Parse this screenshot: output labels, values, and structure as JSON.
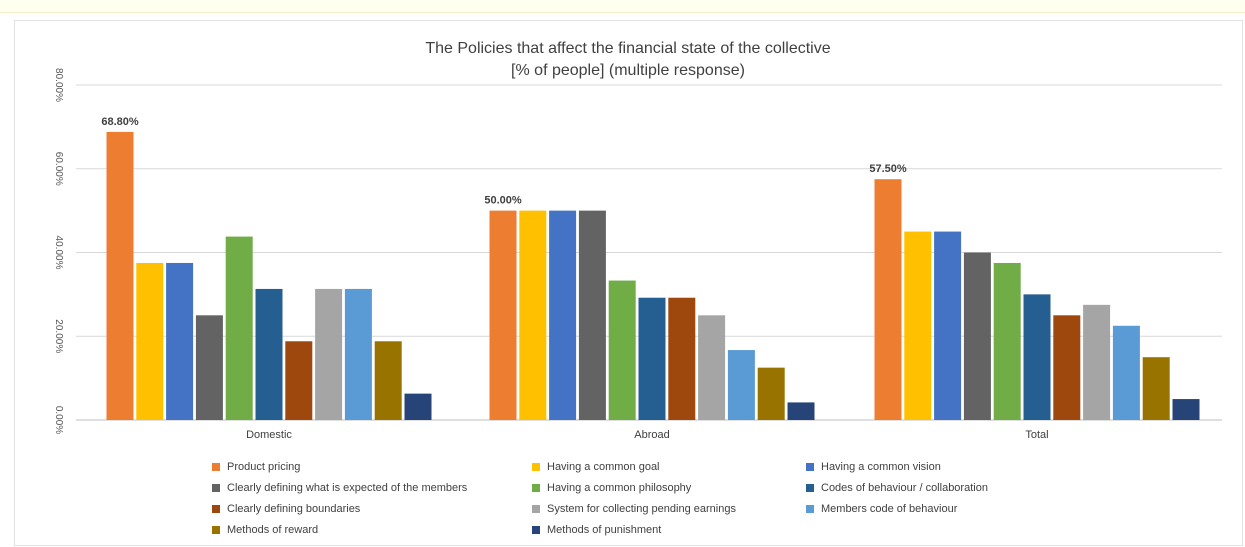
{
  "chart_data": {
    "type": "bar",
    "title": "The Policies that affect the financial state of the collective",
    "subtitle": "[% of people] (multiple response)",
    "categories": [
      "Domestic",
      "Abroad",
      "Total"
    ],
    "ylim": [
      0,
      80
    ],
    "yticks": [
      "0.00%",
      "20.00%",
      "40.00%",
      "60.00%",
      "80.00%"
    ],
    "ytick_values": [
      0,
      20,
      40,
      60,
      80
    ],
    "grid": true,
    "legend_position": "bottom",
    "series": [
      {
        "name": "Product pricing",
        "color": "#ED7D31",
        "values": [
          68.8,
          50.0,
          57.5
        ]
      },
      {
        "name": "Having a common goal",
        "color": "#FFC000",
        "values": [
          37.5,
          50.0,
          45.0
        ]
      },
      {
        "name": "Having a common vision",
        "color": "#4472C4",
        "values": [
          37.5,
          50.0,
          45.0
        ]
      },
      {
        "name": "Clearly defining what is expected of the members",
        "color": "#636363",
        "values": [
          25.0,
          50.0,
          40.0
        ]
      },
      {
        "name": "Having a common philosophy",
        "color": "#70AD47",
        "values": [
          43.8,
          33.3,
          37.5
        ]
      },
      {
        "name": "Codes of behaviour / collaboration",
        "color": "#255E91",
        "values": [
          31.3,
          29.2,
          30.0
        ]
      },
      {
        "name": "Clearly defining boundaries",
        "color": "#9E480E",
        "values": [
          18.8,
          29.2,
          25.0
        ]
      },
      {
        "name": "System for collecting pending earnings",
        "color": "#A5A5A5",
        "values": [
          31.3,
          25.0,
          27.5
        ]
      },
      {
        "name": "Members code of behaviour",
        "color": "#5B9BD5",
        "values": [
          31.3,
          16.7,
          22.5
        ]
      },
      {
        "name": "Methods of reward",
        "color": "#997300",
        "values": [
          18.8,
          12.5,
          15.0
        ]
      },
      {
        "name": "Methods of punishment",
        "color": "#264478",
        "values": [
          6.3,
          4.2,
          5.0
        ]
      }
    ],
    "data_labels": [
      {
        "category": "Domestic",
        "series": "Product pricing",
        "text": "68.80%"
      },
      {
        "category": "Abroad",
        "series": "Product pricing",
        "text": "50.00%"
      },
      {
        "category": "Total",
        "series": "Product pricing",
        "text": "57.50%"
      }
    ]
  }
}
